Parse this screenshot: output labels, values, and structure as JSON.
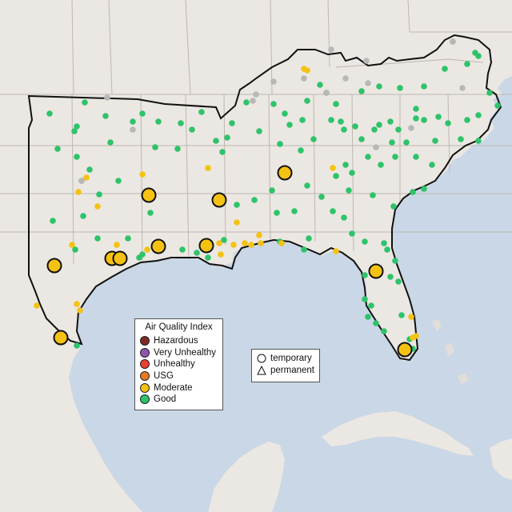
{
  "map": {
    "colors": {
      "water": "#c9d7e6",
      "land": "#ebe7e2",
      "border": "#111111",
      "state_lines": "#bdb7b1"
    }
  },
  "legend": {
    "title": "Air Quality Index",
    "categories": [
      {
        "label": "Hazardous",
        "color": "#7e2a25"
      },
      {
        "label": "Very Unhealthy",
        "color": "#8f55b0"
      },
      {
        "label": "Unhealthy",
        "color": "#e8412f"
      },
      {
        "label": "USG",
        "color": "#e8791f"
      },
      {
        "label": "Moderate",
        "color": "#f5c211"
      },
      {
        "label": "Good",
        "color": "#2ec36a"
      }
    ]
  },
  "monitor_types": {
    "temporary": "temporary",
    "permanent": "permanent"
  },
  "colors": {
    "good": "#2ec36a",
    "moderate": "#f5c211",
    "nodata": "#b8b8b8"
  }
}
